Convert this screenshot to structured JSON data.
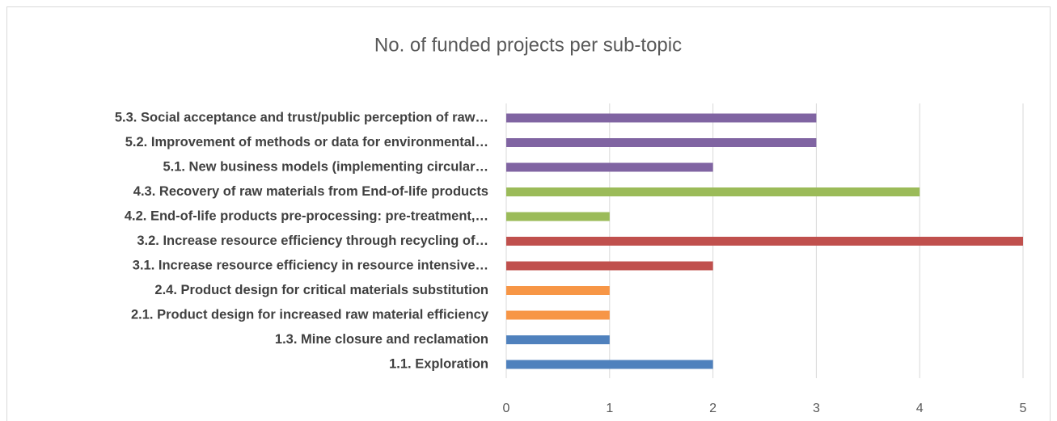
{
  "chart_data": {
    "type": "barh",
    "title": "No. of funded projects per sub-topic",
    "categories": [
      "5.3. Social acceptance and trust/public perception of raw…",
      "5.2. Improvement of methods or data for environmental…",
      "5.1. New business models (implementing circular…",
      "4.3. Recovery of raw materials from End-of-life products",
      "4.2. End-of-life products pre-processing: pre-treatment,…",
      "3.2. Increase resource efficiency through recycling of…",
      "3.1. Increase resource efficiency in resource intensive…",
      "2.4. Product design for critical materials substitution",
      "2.1. Product design for increased raw material efficiency",
      "1.3. Mine closure and reclamation",
      "1.1. Exploration"
    ],
    "values": [
      3,
      3,
      2,
      4,
      1,
      5,
      2,
      1,
      1,
      1,
      2
    ],
    "colors": [
      "#8064a2",
      "#8064a2",
      "#8064a2",
      "#9bbb59",
      "#9bbb59",
      "#c0504d",
      "#c0504d",
      "#f79646",
      "#f79646",
      "#4f81bd",
      "#4f81bd"
    ],
    "xlim": [
      0,
      5
    ],
    "xticks": [
      0,
      1,
      2,
      3,
      4,
      5
    ],
    "grid": true
  }
}
